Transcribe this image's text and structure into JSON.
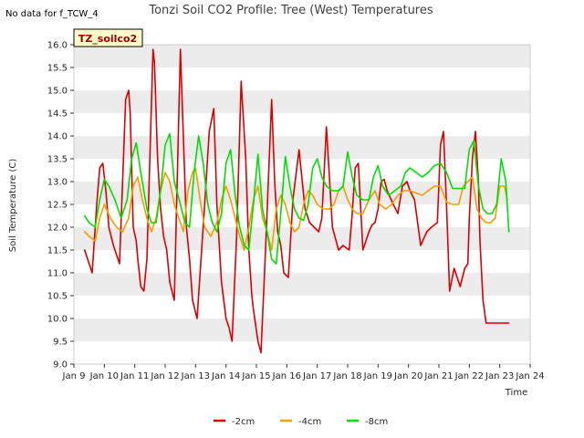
{
  "chart_data": {
    "type": "line",
    "title": "Tonzi Soil CO2 Profile: Tree (West) Temperatures",
    "note": "No data for f_TCW_4",
    "badge": "TZ_soilco2",
    "xlabel": "Time",
    "ylabel": "Soil Temperature (C)",
    "xlim": [
      9,
      24
    ],
    "ylim": [
      9.0,
      16.0
    ],
    "xticks": [
      9,
      10,
      11,
      12,
      13,
      14,
      15,
      16,
      17,
      18,
      19,
      20,
      21,
      22,
      23,
      24
    ],
    "xtick_labels": [
      "Jan 9",
      "Jan 10",
      "Jan 11",
      "Jan 12",
      "Jan 13",
      "Jan 14",
      "Jan 15",
      "Jan 16",
      "Jan 17",
      "Jan 18",
      "Jan 19",
      "Jan 20",
      "Jan 21",
      "Jan 22",
      "Jan 23",
      "Jan 24"
    ],
    "yticks": [
      9.0,
      9.5,
      10.0,
      10.5,
      11.0,
      11.5,
      12.0,
      12.5,
      13.0,
      13.5,
      14.0,
      14.5,
      15.0,
      15.5,
      16.0
    ],
    "ytick_labels": [
      "9.0",
      "9.5",
      "10.0",
      "10.5",
      "11.0",
      "11.5",
      "12.0",
      "12.5",
      "13.0",
      "13.5",
      "14.0",
      "14.5",
      "15.0",
      "15.5",
      "16.0"
    ],
    "grid": true,
    "band_colors": [
      "#ececec",
      "#ffffff"
    ],
    "legend_position": "bottom-center",
    "series": [
      {
        "name": "-2cm",
        "color": "#dd0000",
        "x": [
          9.35,
          9.5,
          9.6,
          9.75,
          9.85,
          9.95,
          10.05,
          10.15,
          10.3,
          10.5,
          10.7,
          10.8,
          10.85,
          10.95,
          11.05,
          11.1,
          11.2,
          11.3,
          11.4,
          11.6,
          11.65,
          11.75,
          11.85,
          11.95,
          12.05,
          12.15,
          12.3,
          12.5,
          12.7,
          12.8,
          12.9,
          13.05,
          13.15,
          13.3,
          13.45,
          13.6,
          13.7,
          13.85,
          14.0,
          14.1,
          14.2,
          14.35,
          14.5,
          14.65,
          14.75,
          14.85,
          14.9,
          15.05,
          15.15,
          15.3,
          15.5,
          15.6,
          15.7,
          15.8,
          15.9,
          16.05,
          16.2,
          16.4,
          16.6,
          16.75,
          16.9,
          17.05,
          17.15,
          17.3,
          17.5,
          17.7,
          17.85,
          17.95,
          18.05,
          18.15,
          18.25,
          18.35,
          18.5,
          18.7,
          18.8,
          18.9,
          19.0,
          19.1,
          19.2,
          19.3,
          19.5,
          19.65,
          19.8,
          19.95,
          20.05,
          20.2,
          20.4,
          20.6,
          20.75,
          20.85,
          20.95,
          21.05,
          21.15,
          21.25,
          21.35,
          21.5,
          21.7,
          21.85,
          21.95,
          22.0,
          22.1,
          22.2,
          22.3,
          22.35,
          22.45,
          22.55,
          22.65,
          22.75,
          22.85,
          22.95,
          23.05,
          23.15,
          23.25,
          23.3
        ],
        "y": [
          11.5,
          11.2,
          11.0,
          12.5,
          13.3,
          13.4,
          12.8,
          12.0,
          11.6,
          11.2,
          14.8,
          15.0,
          14.5,
          12.0,
          11.7,
          11.3,
          10.7,
          10.6,
          11.3,
          15.9,
          15.6,
          13.5,
          12.4,
          11.8,
          11.5,
          10.8,
          10.4,
          15.9,
          12.0,
          11.3,
          10.4,
          10.0,
          11.0,
          12.5,
          14.1,
          14.6,
          12.5,
          10.8,
          10.0,
          9.8,
          9.5,
          11.8,
          15.2,
          13.5,
          11.5,
          10.5,
          10.2,
          9.5,
          9.25,
          11.5,
          14.8,
          13.0,
          11.9,
          11.6,
          11.0,
          10.9,
          12.6,
          13.7,
          12.4,
          12.1,
          12.0,
          11.9,
          12.2,
          14.2,
          12.0,
          11.5,
          11.6,
          11.55,
          11.5,
          12.3,
          13.3,
          13.4,
          11.5,
          11.9,
          12.05,
          12.1,
          12.4,
          13.0,
          13.05,
          12.8,
          12.5,
          12.3,
          12.9,
          13.0,
          12.8,
          12.6,
          11.6,
          11.9,
          12.0,
          12.05,
          12.1,
          13.8,
          14.1,
          12.5,
          10.6,
          11.1,
          10.7,
          11.1,
          11.2,
          12.2,
          13.5,
          14.1,
          13.0,
          11.7,
          10.4,
          9.9,
          9.9,
          9.9,
          9.9,
          9.9,
          9.9,
          9.9,
          9.9,
          9.9
        ]
      },
      {
        "name": "-4cm",
        "color": "#f0a000",
        "x": [
          9.35,
          9.5,
          9.7,
          9.85,
          10.0,
          10.2,
          10.4,
          10.6,
          10.8,
          10.95,
          11.1,
          11.25,
          11.4,
          11.55,
          11.7,
          11.85,
          12.0,
          12.15,
          12.3,
          12.45,
          12.6,
          12.75,
          12.9,
          13.0,
          13.15,
          13.3,
          13.5,
          13.7,
          13.85,
          14.0,
          14.15,
          14.3,
          14.45,
          14.6,
          14.75,
          14.9,
          15.05,
          15.2,
          15.35,
          15.5,
          15.65,
          15.8,
          15.95,
          16.1,
          16.25,
          16.4,
          16.55,
          16.7,
          16.85,
          17.0,
          17.2,
          17.4,
          17.55,
          17.7,
          17.85,
          18.0,
          18.15,
          18.3,
          18.5,
          18.7,
          18.9,
          19.05,
          19.25,
          19.45,
          19.65,
          19.85,
          20.05,
          20.25,
          20.45,
          20.65,
          20.85,
          21.05,
          21.25,
          21.45,
          21.65,
          21.8,
          21.95,
          22.1,
          22.25,
          22.4,
          22.55,
          22.7,
          22.85,
          23.0,
          23.15,
          23.25
        ],
        "y": [
          11.9,
          11.8,
          11.7,
          12.2,
          12.5,
          12.2,
          12.0,
          11.9,
          12.2,
          12.9,
          13.1,
          12.6,
          12.2,
          11.9,
          12.2,
          12.8,
          13.2,
          13.0,
          12.5,
          12.2,
          11.9,
          12.8,
          13.2,
          13.3,
          12.6,
          12.0,
          11.8,
          12.1,
          12.6,
          12.9,
          12.6,
          12.2,
          11.8,
          11.5,
          12.0,
          12.6,
          12.9,
          12.2,
          11.9,
          11.5,
          12.4,
          12.7,
          12.5,
          12.1,
          11.9,
          12.0,
          12.5,
          12.8,
          12.7,
          12.5,
          12.4,
          12.4,
          12.5,
          12.8,
          12.9,
          12.6,
          12.4,
          12.3,
          12.3,
          12.6,
          12.8,
          12.5,
          12.4,
          12.5,
          12.7,
          12.8,
          12.8,
          12.75,
          12.7,
          12.8,
          12.9,
          12.9,
          12.55,
          12.5,
          12.5,
          12.9,
          13.0,
          13.1,
          12.4,
          12.2,
          12.1,
          12.1,
          12.2,
          12.9,
          12.9,
          12.6
        ]
      },
      {
        "name": "-8cm",
        "color": "#00e000",
        "x": [
          9.35,
          9.5,
          9.7,
          9.85,
          10.0,
          10.15,
          10.35,
          10.55,
          10.75,
          10.9,
          11.05,
          11.2,
          11.4,
          11.55,
          11.7,
          11.85,
          12.0,
          12.15,
          12.3,
          12.5,
          12.65,
          12.8,
          12.95,
          13.1,
          13.25,
          13.4,
          13.55,
          13.7,
          13.85,
          14.0,
          14.15,
          14.3,
          14.45,
          14.6,
          14.75,
          14.9,
          15.05,
          15.2,
          15.35,
          15.5,
          15.65,
          15.8,
          15.95,
          16.1,
          16.25,
          16.4,
          16.55,
          16.7,
          16.85,
          17.0,
          17.15,
          17.3,
          17.5,
          17.7,
          17.85,
          18.0,
          18.15,
          18.3,
          18.5,
          18.7,
          18.85,
          19.0,
          19.15,
          19.35,
          19.55,
          19.75,
          19.9,
          20.05,
          20.25,
          20.45,
          20.65,
          20.85,
          21.05,
          21.25,
          21.45,
          21.65,
          21.85,
          22.0,
          22.15,
          22.3,
          22.45,
          22.6,
          22.75,
          22.9,
          23.05,
          23.2,
          23.3
        ],
        "y": [
          12.25,
          12.1,
          12.0,
          12.6,
          13.05,
          12.9,
          12.6,
          12.2,
          12.6,
          13.5,
          13.85,
          13.2,
          12.4,
          12.1,
          12.1,
          12.8,
          13.8,
          14.05,
          13.0,
          12.5,
          12.1,
          12.0,
          13.2,
          14.0,
          13.4,
          12.5,
          12.1,
          11.9,
          12.3,
          13.4,
          13.7,
          12.7,
          12.0,
          11.6,
          11.5,
          12.5,
          13.6,
          12.4,
          11.9,
          11.3,
          11.2,
          12.3,
          13.55,
          12.9,
          12.4,
          12.2,
          12.15,
          12.5,
          13.3,
          13.5,
          13.1,
          12.9,
          12.8,
          12.8,
          12.9,
          13.65,
          13.1,
          12.7,
          12.6,
          12.6,
          13.1,
          13.35,
          12.9,
          12.7,
          12.8,
          12.9,
          13.2,
          13.3,
          13.2,
          13.1,
          13.2,
          13.35,
          13.4,
          13.2,
          12.85,
          12.85,
          12.85,
          13.7,
          13.9,
          12.9,
          12.4,
          12.3,
          12.3,
          12.5,
          13.5,
          13.0,
          11.9
        ]
      }
    ]
  }
}
